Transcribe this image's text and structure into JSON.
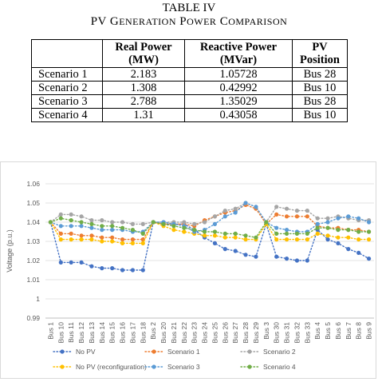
{
  "table": {
    "title_line1": "TABLE IV",
    "title_line2_words": [
      {
        "cap": "PV",
        "rest": ""
      },
      {
        "cap": "G",
        "rest": "ENERATION"
      },
      {
        "cap": "P",
        "rest": "OWER"
      },
      {
        "cap": "C",
        "rest": "OMPARISON"
      }
    ],
    "headers": [
      {
        "line1": "",
        "line2": ""
      },
      {
        "line1": "Real Power",
        "line2": "(MW)"
      },
      {
        "line1": "Reactive Power",
        "line2": "(MVar)"
      },
      {
        "line1": "PV",
        "line2": "Position"
      }
    ],
    "rows": [
      {
        "scenario": "Scenario 1",
        "real": "2.183",
        "reactive": "1.05728",
        "position": "Bus 28"
      },
      {
        "scenario": "Scenario 2",
        "real": "1.308",
        "reactive": "0.42992",
        "position": "Bus 10"
      },
      {
        "scenario": "Scenario 3",
        "real": "2.788",
        "reactive": "1.35029",
        "position": "Bus 28"
      },
      {
        "scenario": "Scenario 4",
        "real": "1.31",
        "reactive": "0.43058",
        "position": "Bus 10"
      }
    ]
  },
  "chart_data": {
    "type": "line",
    "ylabel": "Voltage (p.u.)",
    "xlabel": "",
    "ylim": [
      0.99,
      1.06
    ],
    "yticks": [
      "0.99",
      "1",
      "1.01",
      "1.02",
      "1.03",
      "1.04",
      "1.05",
      "1.06"
    ],
    "grid": "horizontal",
    "legend_position": "bottom",
    "categories": [
      "Bus 1",
      "Bus 10",
      "Bus 11",
      "Bus 12",
      "Bus 13",
      "Bus 14",
      "Bus 15",
      "Bus 16",
      "Bus 17",
      "Bus 18",
      "Bus 2",
      "Bus 20",
      "Bus 21",
      "Bus 22",
      "Bus 23",
      "Bus 24",
      "Bus 25",
      "Bus 26",
      "Bus 27",
      "Bus 28",
      "Bus 29",
      "Bus 3",
      "Bus 30",
      "Bus 31",
      "Bus 32",
      "Bus 33",
      "Bus 4",
      "Bus 5",
      "Bus 6",
      "Bus 7",
      "Bus 8",
      "Bus 9"
    ],
    "series": [
      {
        "name": "No PV",
        "color": "#4472C4",
        "values": [
          1.04,
          1.019,
          1.019,
          1.019,
          1.017,
          1.016,
          1.016,
          1.015,
          1.015,
          1.015,
          1.04,
          1.039,
          1.039,
          1.039,
          1.036,
          1.032,
          1.029,
          1.026,
          1.025,
          1.023,
          1.022,
          1.039,
          1.022,
          1.021,
          1.02,
          1.02,
          1.036,
          1.031,
          1.029,
          1.026,
          1.024,
          1.021
        ]
      },
      {
        "name": "Scenario 1",
        "color": "#ED7D31",
        "values": [
          1.04,
          1.034,
          1.034,
          1.033,
          1.033,
          1.032,
          1.032,
          1.031,
          1.031,
          1.031,
          1.04,
          1.039,
          1.039,
          1.039,
          1.038,
          1.041,
          1.043,
          1.045,
          1.046,
          1.049,
          1.047,
          1.039,
          1.044,
          1.043,
          1.043,
          1.043,
          1.038,
          1.037,
          1.037,
          1.036,
          1.036,
          1.035
        ]
      },
      {
        "name": "Scenario 2",
        "color": "#A5A5A5",
        "values": [
          1.04,
          1.044,
          1.044,
          1.043,
          1.041,
          1.041,
          1.04,
          1.04,
          1.039,
          1.039,
          1.04,
          1.04,
          1.04,
          1.04,
          1.039,
          1.04,
          1.043,
          1.046,
          1.047,
          1.05,
          1.048,
          1.04,
          1.048,
          1.047,
          1.046,
          1.046,
          1.042,
          1.042,
          1.043,
          1.042,
          1.041,
          1.041
        ]
      },
      {
        "name": "No PV (reconfiguration)",
        "color": "#FFC000",
        "values": [
          1.04,
          1.031,
          1.031,
          1.031,
          1.031,
          1.03,
          1.03,
          1.029,
          1.029,
          1.029,
          1.04,
          1.038,
          1.036,
          1.035,
          1.034,
          1.033,
          1.033,
          1.032,
          1.032,
          1.031,
          1.031,
          1.039,
          1.031,
          1.031,
          1.031,
          1.031,
          1.034,
          1.033,
          1.032,
          1.032,
          1.031,
          1.031
        ]
      },
      {
        "name": "Scenario 3",
        "color": "#5B9BD5",
        "values": [
          1.04,
          1.038,
          1.038,
          1.038,
          1.037,
          1.036,
          1.036,
          1.036,
          1.035,
          1.035,
          1.04,
          1.04,
          1.039,
          1.038,
          1.035,
          1.036,
          1.039,
          1.043,
          1.045,
          1.05,
          1.048,
          1.04,
          1.037,
          1.036,
          1.035,
          1.035,
          1.039,
          1.04,
          1.042,
          1.043,
          1.042,
          1.04
        ]
      },
      {
        "name": "Scenario 4",
        "color": "#70AD47",
        "values": [
          1.04,
          1.042,
          1.041,
          1.04,
          1.039,
          1.038,
          1.038,
          1.037,
          1.036,
          1.034,
          1.04,
          1.039,
          1.038,
          1.037,
          1.036,
          1.035,
          1.035,
          1.034,
          1.034,
          1.033,
          1.032,
          1.04,
          1.034,
          1.034,
          1.034,
          1.034,
          1.037,
          1.037,
          1.036,
          1.036,
          1.035,
          1.035
        ]
      }
    ]
  }
}
